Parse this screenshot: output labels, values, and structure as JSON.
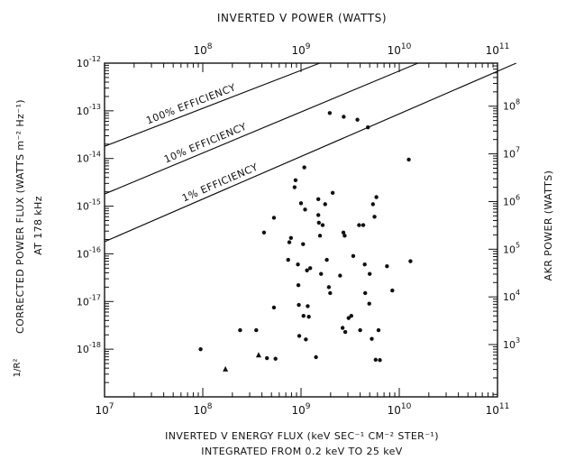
{
  "chart_data": {
    "type": "scatter",
    "title": "",
    "xlabel": "INVERTED V ENERGY FLUX (keV SEC⁻¹ CM⁻² STER⁻¹)",
    "xlabel_sub": "INTEGRATED FROM 0.2 keV TO 25 keV",
    "x2label": "INVERTED V POWER (WATTS)",
    "ylabel_prefix": "1/R²",
    "ylabel": "CORRECTED POWER FLUX (WATTS m⁻² Hz⁻¹)",
    "ylabel_sub": "AT 178 kHz",
    "y2label": "AKR POWER (WATTS)",
    "x_scale": "log",
    "y_scale": "log",
    "xlim": [
      10000000.0,
      100000000000.0
    ],
    "ylim": [
      1e-19,
      1e-12
    ],
    "x_ticks": [
      {
        "value": 10000000.0,
        "base": "10",
        "exp": "7"
      },
      {
        "value": 100000000.0,
        "base": "10",
        "exp": "8"
      },
      {
        "value": 1000000000.0,
        "base": "10",
        "exp": "9"
      },
      {
        "value": 10000000000.0,
        "base": "10",
        "exp": "10"
      },
      {
        "value": 100000000000.0,
        "base": "10",
        "exp": "11"
      }
    ],
    "y_ticks": [
      {
        "value": 1e-18,
        "base": "10",
        "exp": "-18"
      },
      {
        "value": 1e-17,
        "base": "10",
        "exp": "-17"
      },
      {
        "value": 1e-16,
        "base": "10",
        "exp": "-16"
      },
      {
        "value": 1e-15,
        "base": "10",
        "exp": "-15"
      },
      {
        "value": 1e-14,
        "base": "10",
        "exp": "-14"
      },
      {
        "value": 1e-13,
        "base": "10",
        "exp": "-13"
      },
      {
        "value": 1e-12,
        "base": "10",
        "exp": "-12"
      }
    ],
    "x2_ticks": [
      {
        "value": 100000000.0,
        "base": "10",
        "exp": "8"
      },
      {
        "value": 1000000000.0,
        "base": "10",
        "exp": "9"
      },
      {
        "value": 10000000000.0,
        "base": "10",
        "exp": "10"
      },
      {
        "value": 100000000000.0,
        "base": "10",
        "exp": "11"
      }
    ],
    "x2_to_x_factor": 1.0,
    "y2_ticks": [
      {
        "value": 1000.0,
        "base": "10",
        "exp": "3"
      },
      {
        "value": 10000.0,
        "base": "10",
        "exp": "4"
      },
      {
        "value": 100000.0,
        "base": "10",
        "exp": "5"
      },
      {
        "value": 1000000.0,
        "base": "10",
        "exp": "6"
      },
      {
        "value": 10000000.0,
        "base": "10",
        "exp": "7"
      },
      {
        "value": 100000000.0,
        "base": "10",
        "exp": "8"
      },
      {
        "value": 1000000000.0,
        "base": "10",
        "exp": "9"
      }
    ],
    "y2_to_y_factor": 1.25e-21,
    "efficiency_lines": [
      {
        "label": "100% EFFICIENCY",
        "x_start": 10000000.0,
        "x_end": 1550000000.0,
        "y_start": 1.8e-14,
        "y_end": 1e-12
      },
      {
        "label": "10% EFFICIENCY",
        "x_start": 10000000.0,
        "x_end": 15500000000.0,
        "y_start": 1.8e-15,
        "y_end": 1e-12
      },
      {
        "label": "1% EFFICIENCY",
        "x_start": 10000000.0,
        "x_end": 155000000000.0,
        "y_start": 1.8e-16,
        "y_end": 1e-12
      }
    ],
    "series": [
      {
        "marker": "circle",
        "points": [
          [
            95000000.0,
            1e-18
          ],
          [
            240000000.0,
            2.5e-18
          ],
          [
            350000000.0,
            2.5e-18
          ],
          [
            450000000.0,
            6.5e-19
          ],
          [
            550000000.0,
            6.3e-19
          ],
          [
            420000000.0,
            2.8e-16
          ],
          [
            530000000.0,
            5.7e-16
          ],
          [
            530000000.0,
            7.5e-18
          ],
          [
            740000000.0,
            7.5e-17
          ],
          [
            760000000.0,
            1.75e-16
          ],
          [
            790000000.0,
            2.15e-16
          ],
          [
            860000000.0,
            2.5e-15
          ],
          [
            880000000.0,
            3.5e-15
          ],
          [
            930000000.0,
            6e-17
          ],
          [
            940000000.0,
            2.2e-17
          ],
          [
            950000000.0,
            8.5e-18
          ],
          [
            960000000.0,
            1.9e-18
          ],
          [
            1000000000.0,
            1.15e-15
          ],
          [
            1050000000.0,
            1.6e-16
          ],
          [
            1060000000.0,
            5e-18
          ],
          [
            1080000000.0,
            6.5e-15
          ],
          [
            1100000000.0,
            8.5e-16
          ],
          [
            1120000000.0,
            1.6e-18
          ],
          [
            1150000000.0,
            4.5e-17
          ],
          [
            1170000000.0,
            8e-18
          ],
          [
            1200000000.0,
            4.8e-18
          ],
          [
            1240000000.0,
            5e-17
          ],
          [
            1420000000.0,
            6.8e-19
          ],
          [
            1500000000.0,
            1.4e-15
          ],
          [
            1500000000.0,
            6.5e-16
          ],
          [
            1520000000.0,
            4.5e-16
          ],
          [
            1560000000.0,
            2.4e-16
          ],
          [
            1600000000.0,
            3.8e-17
          ],
          [
            1660000000.0,
            4e-16
          ],
          [
            1760000000.0,
            1.1e-15
          ],
          [
            1830000000.0,
            7.5e-17
          ],
          [
            1920000000.0,
            2e-17
          ],
          [
            1960000000.0,
            9e-14
          ],
          [
            1980000000.0,
            1.5e-17
          ],
          [
            2100000000.0,
            1.9e-15
          ],
          [
            2500000000.0,
            3.5e-17
          ],
          [
            2650000000.0,
            2.8e-18
          ],
          [
            2700000000.0,
            2.8e-16
          ],
          [
            2720000000.0,
            7.5e-14
          ],
          [
            2780000000.0,
            2.4e-16
          ],
          [
            2820000000.0,
            2.3e-18
          ],
          [
            3050000000.0,
            4.5e-18
          ],
          [
            3250000000.0,
            5e-18
          ],
          [
            3400000000.0,
            9e-17
          ],
          [
            3750000000.0,
            6.5e-14
          ],
          [
            3900000000.0,
            4e-16
          ],
          [
            4000000000.0,
            2.5e-18
          ],
          [
            4300000000.0,
            4e-16
          ],
          [
            4450000000.0,
            6e-17
          ],
          [
            4500000000.0,
            1.5e-17
          ],
          [
            4800000000.0,
            4.5e-14
          ],
          [
            4950000000.0,
            9e-18
          ],
          [
            5000000000.0,
            3.8e-17
          ],
          [
            5250000000.0,
            1.65e-18
          ],
          [
            5400000000.0,
            1.1e-15
          ],
          [
            5600000000.0,
            6e-16
          ],
          [
            5750000000.0,
            6e-19
          ],
          [
            5850000000.0,
            1.55e-15
          ],
          [
            6150000000.0,
            2.5e-18
          ],
          [
            6350000000.0,
            5.9e-19
          ],
          [
            7500000000.0,
            5.5e-17
          ],
          [
            8500000000.0,
            1.7e-17
          ],
          [
            12500000000.0,
            9.5e-15
          ],
          [
            13000000000.0,
            7e-17
          ]
        ]
      },
      {
        "marker": "triangle",
        "points": [
          [
            170000000.0,
            3.8e-19
          ],
          [
            370000000.0,
            7.5e-19
          ]
        ]
      }
    ],
    "grid": false,
    "legend": "none"
  }
}
